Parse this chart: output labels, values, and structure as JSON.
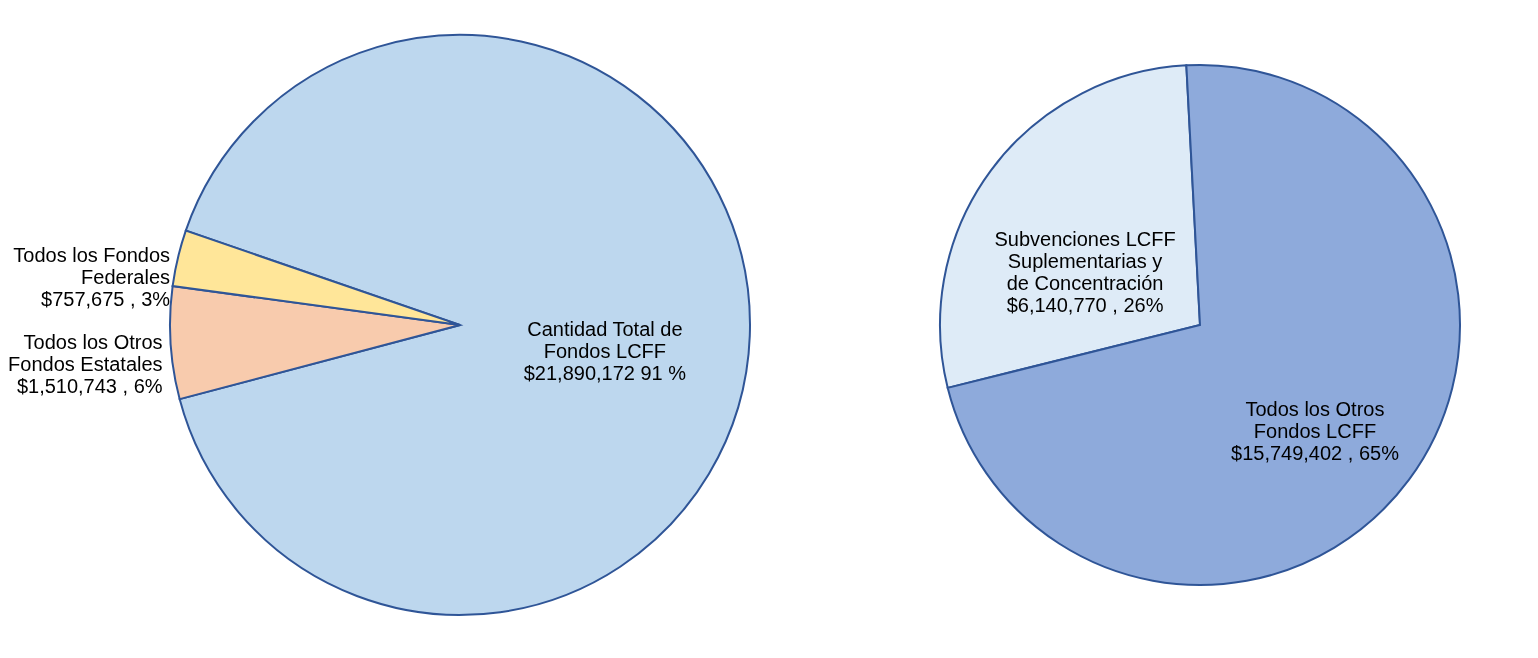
{
  "chart_data": [
    {
      "type": "pie",
      "categories": [
        "Cantidad Total de Fondos LCFF",
        "Todos los Otros Fondos Estatales",
        "Todos los Fondos Federales"
      ],
      "values": [
        21890172,
        1510743,
        757675
      ],
      "colors": [
        "#bdd7ee",
        "#f8cbad",
        "#ffe699"
      ],
      "value_labels": [
        "$21,890,172 91 %",
        "$1,510,743 , 6%",
        "$757,675 , 3%"
      ]
    },
    {
      "type": "pie",
      "categories": [
        "Subvenciones LCFF Suplementarias y de Concentración",
        "Todos los Otros Fondos LCFF"
      ],
      "values": [
        6140770,
        15749402
      ],
      "colors": [
        "#deebf7",
        "#8eaadb"
      ],
      "value_labels": [
        "$6,140,770 , 26%",
        "$15,749,402 , 65%"
      ]
    }
  ]
}
